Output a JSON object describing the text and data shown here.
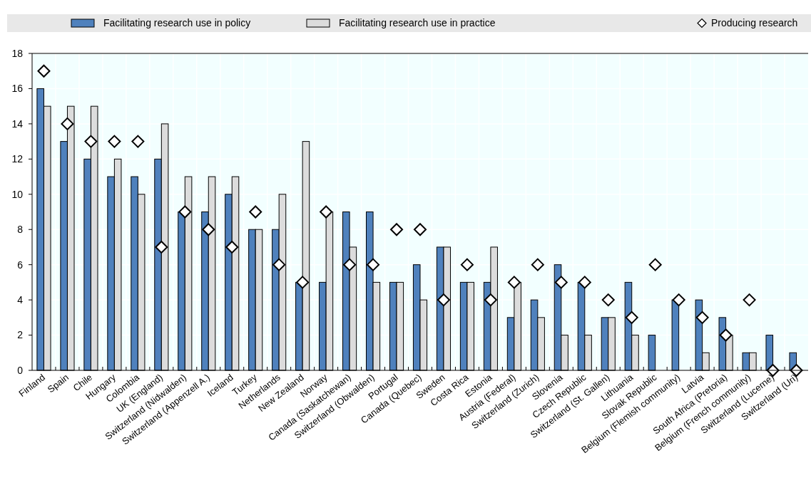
{
  "chart_data": {
    "type": "bar",
    "categories": [
      "Finland",
      "Spain",
      "Chile",
      "Hungary",
      "Colombia",
      "UK (England)",
      "Switzerland (Nidwalden)",
      "Switzerland (Appenzell A.)",
      "Iceland",
      "Turkey",
      "Netherlands",
      "New Zealand",
      "Norway",
      "Canada (Saskatchewan)",
      "Switzerland (Obwalden)",
      "Portugal",
      "Canada (Quebec)",
      "Sweden",
      "Costa Rica",
      "Estonia",
      "Austria (Federal)",
      "Switzerland (Zurich)",
      "Slovenia",
      "Czech Republic",
      "Switzerland (St. Gallen)",
      "Lithuania",
      "Slovak Republic",
      "Belgium (Flemish community)",
      "Latvia",
      "South Africa (Pretoria)",
      "Belgium (French community)",
      "Switzerland (Lucerne)",
      "Switzerland (Uri)"
    ],
    "series": [
      {
        "name": "Facilitating research use in policy",
        "color": "#4f81bd",
        "values": [
          16,
          13,
          12,
          11,
          11,
          12,
          9,
          9,
          10,
          8,
          8,
          5,
          5,
          9,
          9,
          5,
          6,
          7,
          5,
          5,
          3,
          4,
          6,
          5,
          3,
          5,
          2,
          4,
          4,
          3,
          1,
          2,
          1
        ]
      },
      {
        "name": "Facilitating research use in practice",
        "color": "#dcdcdc",
        "values": [
          15,
          15,
          15,
          12,
          10,
          14,
          11,
          11,
          11,
          8,
          10,
          13,
          9,
          7,
          5,
          5,
          4,
          7,
          5,
          7,
          5,
          3,
          2,
          2,
          3,
          2,
          0,
          0,
          1,
          2,
          1,
          0,
          0
        ]
      },
      {
        "name": "Producing research",
        "type": "scatter",
        "color": "#ffffff",
        "values": [
          17,
          14,
          13,
          13,
          13,
          7,
          9,
          8,
          7,
          9,
          6,
          5,
          9,
          6,
          6,
          8,
          8,
          4,
          6,
          4,
          5,
          6,
          5,
          5,
          4,
          3,
          6,
          4,
          3,
          2,
          4,
          0,
          0
        ]
      }
    ],
    "ylim": [
      0,
      18
    ],
    "yticks": [
      0,
      2,
      4,
      6,
      8,
      10,
      12,
      14,
      16,
      18
    ],
    "grid": true,
    "legend": "top",
    "marker": "diamond"
  }
}
